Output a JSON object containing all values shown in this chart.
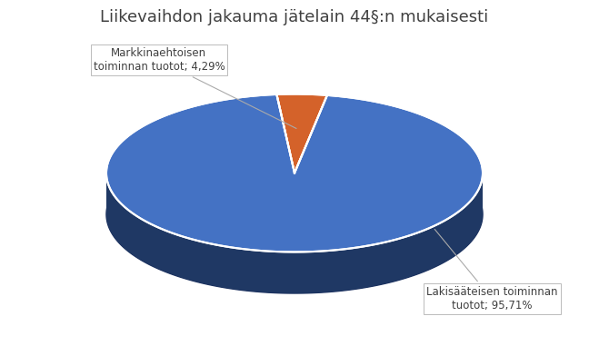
{
  "title": "Liikevaihdon jakauma jätelain 44§:n mukaisesti",
  "slices": [
    4.29,
    95.71
  ],
  "labels": [
    "Markkinaehtoisen\ntoiminnan tuotot; 4,29%",
    "Lakisääteisen toiminnan\ntuotot; 95,71%"
  ],
  "colors": [
    "#D4622A",
    "#4472C4"
  ],
  "side_colors": [
    "#7B3010",
    "#1F3864"
  ],
  "startangle": 80,
  "background_color": "#FFFFFF",
  "title_fontsize": 13,
  "annotation_fontsize": 8.5,
  "wedge_edge_color": "#FFFFFF"
}
